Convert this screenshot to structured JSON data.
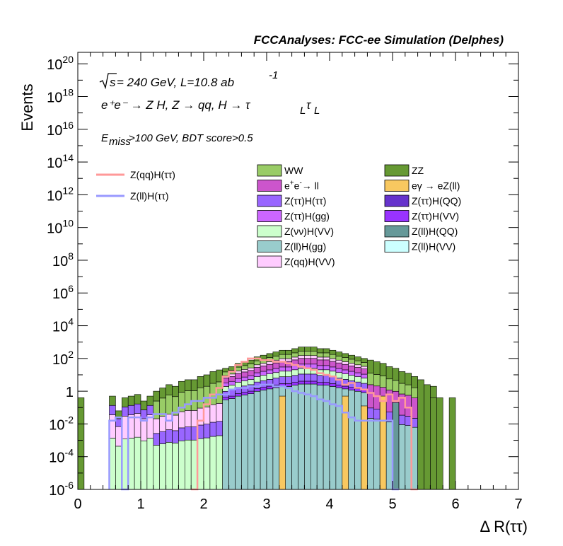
{
  "chart_data": {
    "type": "histogram",
    "title": "FCCAnalyses: FCC-ee Simulation (Delphes)",
    "annotations": {
      "line1_sqrt": "s",
      "line1_rest": " = 240 GeV, L=10.8 ab",
      "line1_sup": "-1",
      "line2": "e⁺e⁻ → Z H, Z → qq, H → τ",
      "line2_sub1": "L",
      "line2_tau2": "τ",
      "line2_sub2": "L",
      "line3_E": "E",
      "line3_sub": "miss",
      "line3_rest": ">100 GeV, BDT score>0.5"
    },
    "xlabel": "Δ R(ττ)",
    "ylabel": "Events",
    "xlim": [
      0,
      7
    ],
    "ylim_log10": [
      -6,
      20.7
    ],
    "log_y": true,
    "x_ticks": [
      "0",
      "1",
      "2",
      "3",
      "4",
      "5",
      "6",
      "7"
    ],
    "y_ticks": [
      {
        "base": "10",
        "exp": "-6",
        "log": -6
      },
      {
        "base": "10",
        "exp": "-4",
        "log": -4
      },
      {
        "base": "10",
        "exp": "-2",
        "log": -2
      },
      {
        "base": "1",
        "exp": "",
        "log": 0
      },
      {
        "base": "10",
        "exp": "2",
        "log": 2
      },
      {
        "base": "10",
        "exp": "4",
        "log": 4
      },
      {
        "base": "10",
        "exp": "6",
        "log": 6
      },
      {
        "base": "10",
        "exp": "8",
        "log": 8
      },
      {
        "base": "10",
        "exp": "10",
        "log": 10
      },
      {
        "base": "10",
        "exp": "12",
        "log": 12
      },
      {
        "base": "10",
        "exp": "14",
        "log": 14
      },
      {
        "base": "10",
        "exp": "16",
        "log": 16
      },
      {
        "base": "10",
        "exp": "18",
        "log": 18
      },
      {
        "base": "10",
        "exp": "20",
        "log": 20
      }
    ],
    "bin_width": 0.1,
    "stack_top_log10": [
      -0.4,
      -9,
      -9,
      -9,
      -9,
      -0.3,
      -1.2,
      -0.4,
      -0.3,
      -0.2,
      -0.6,
      -0.3,
      0.0,
      0.2,
      0.4,
      0.3,
      0.6,
      0.7,
      0.7,
      0.9,
      1.0,
      1.2,
      1.3,
      1.4,
      1.5,
      1.7,
      1.8,
      1.9,
      2.1,
      2.2,
      2.3,
      2.4,
      2.5,
      2.5,
      2.6,
      2.7,
      2.7,
      2.7,
      2.6,
      2.6,
      2.5,
      2.4,
      2.3,
      2.2,
      2.1,
      2.0,
      1.9,
      1.8,
      1.7,
      1.5,
      1.4,
      1.2,
      1.1,
      0.9,
      0.7,
      0.4,
      0.3,
      -0.4,
      -9,
      -0.4,
      -9,
      -9,
      -9,
      -9,
      -9,
      -9,
      -9,
      -9,
      -9,
      -9
    ],
    "stacked_series": [
      {
        "name": "WW",
        "color": "#99cc66"
      },
      {
        "name": "ZZ",
        "color": "#669933"
      },
      {
        "name": "e⁺e⁻→ ll",
        "color": "#cc55cc"
      },
      {
        "name": "eγ → eZ(ll)",
        "color": "#f8c860"
      },
      {
        "name": "Z(ττ)H(ττ)",
        "color": "#9966ff"
      },
      {
        "name": "Z(ττ)H(QQ)",
        "color": "#6633cc"
      },
      {
        "name": "Z(ττ)H(gg)",
        "color": "#cc66ff"
      },
      {
        "name": "Z(ττ)H(VV)",
        "color": "#9933ff"
      },
      {
        "name": "Z(νν)H(VV)",
        "color": "#ccffcc"
      },
      {
        "name": "Z(ll)H(QQ)",
        "color": "#669999"
      },
      {
        "name": "Z(ll)H(gg)",
        "color": "#99cccc"
      },
      {
        "name": "Z(ll)H(VV)",
        "color": "#ccffff"
      },
      {
        "name": "Z(qq)H(VV)",
        "color": "#ffccff"
      }
    ],
    "line_series": [
      {
        "name": "Z(qq)H(ττ)",
        "color": "#ff9999",
        "start_x": 1.8,
        "values_log10": [
          -9,
          -1.8,
          -0.8,
          -0.2,
          0.2,
          0.9,
          1.2,
          1.6,
          1.8,
          2.0,
          2.0,
          1.9,
          1.9,
          1.8,
          1.8,
          1.7,
          1.6,
          1.5,
          1.4,
          1.3,
          1.1,
          1.0,
          0.9,
          0.7,
          0.4,
          0.5,
          0.2,
          0.1,
          -0.1,
          -0.3,
          -0.6,
          -0.2,
          -0.6,
          -0.4,
          -1.0,
          -9
        ]
      },
      {
        "name": "Z(ll)H(ττ)",
        "color": "#9999ff",
        "start_x": 0.5,
        "values_log10": [
          -1.8,
          -1.6,
          -9,
          -1.6,
          -1.6,
          -1.8,
          -1.6,
          -1.4,
          -1.4,
          -1.8,
          -1.3,
          -1.0,
          -0.8,
          -0.6,
          -0.6,
          -0.4,
          -0.4,
          -0.2,
          -0.2,
          0.1,
          0.2,
          0.2,
          0.3,
          0.3,
          0.4,
          0.4,
          0.3,
          0.3,
          0.2,
          0.0,
          -0.1,
          -0.2,
          -0.3,
          -0.5,
          -0.6,
          -0.8,
          -0.9,
          -1.3,
          -1.6,
          -1.8,
          -1.8,
          -1.8,
          -1.8,
          -1.8,
          -1.8,
          -9
        ]
      }
    ],
    "legend": {
      "position": "top",
      "lines_left": [
        "Z(qq)H(ττ)",
        "Z(ll)H(ττ)"
      ],
      "col1": [
        {
          "label": "WW",
          "color": "#99cc66",
          "sup": ""
        },
        {
          "label": "e",
          "sup": "+",
          "label2": "e",
          "sup2": "-",
          "label3": "→ ll",
          "color": "#cc55cc"
        },
        {
          "label": "Z(ττ)H(ττ)",
          "color": "#9966ff",
          "sup": ""
        },
        {
          "label": "Z(ττ)H(gg)",
          "color": "#cc66ff",
          "sup": ""
        },
        {
          "label": "Z(νν)H(VV)",
          "color": "#ccffcc",
          "sup": ""
        },
        {
          "label": "Z(ll)H(gg)",
          "color": "#99cccc",
          "sup": ""
        },
        {
          "label": "Z(qq)H(VV)",
          "color": "#ffccff",
          "sup": ""
        }
      ],
      "col2": [
        {
          "label": "ZZ",
          "color": "#669933"
        },
        {
          "label": "eγ → eZ(ll)",
          "color": "#f8c860"
        },
        {
          "label": "Z(ττ)H(QQ)",
          "color": "#6633cc"
        },
        {
          "label": "Z(ττ)H(VV)",
          "color": "#9933ff"
        },
        {
          "label": "Z(ll)H(QQ)",
          "color": "#669999"
        },
        {
          "label": "Z(ll)H(VV)",
          "color": "#ccffff"
        }
      ]
    }
  }
}
